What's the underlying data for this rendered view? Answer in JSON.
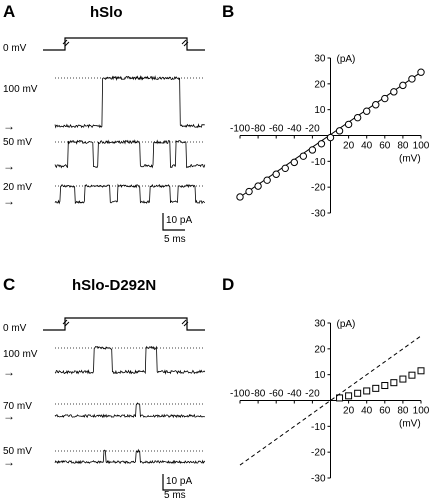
{
  "panels": {
    "A": {
      "letter": "A",
      "title": "hSlo",
      "voltage_step": "0 mV",
      "traces": [
        "100 mV",
        "50 mV",
        "20 mV"
      ],
      "scale_current": "10 pA",
      "scale_time": "5 ms"
    },
    "B": {
      "letter": "B"
    },
    "C": {
      "letter": "C",
      "title": "hSlo-D292N",
      "voltage_step": "0 mV",
      "traces": [
        "100 mV",
        "70 mV",
        "50 mV"
      ],
      "scale_current": "10 pA",
      "scale_time": "5 ms"
    },
    "D": {
      "letter": "D"
    }
  },
  "chart_data": [
    {
      "panel": "B",
      "type": "scatter",
      "x_unit": "(mV)",
      "y_unit": "(pA)",
      "xlim": [
        -100,
        100
      ],
      "ylim": [
        -30,
        30
      ],
      "x_ticks": [
        -100,
        -80,
        -60,
        -40,
        -20,
        20,
        40,
        60,
        80,
        100
      ],
      "y_ticks": [
        -30,
        -20,
        -10,
        10,
        20,
        30
      ],
      "grid": false,
      "series": [
        {
          "marker": "circle",
          "fit_line": true,
          "x": [
            -100,
            -90,
            -80,
            -70,
            -60,
            -50,
            -40,
            -30,
            -20,
            -10,
            0,
            10,
            20,
            30,
            40,
            50,
            60,
            70,
            80,
            90,
            100
          ],
          "y": [
            -23.8,
            -21.7,
            -19.6,
            -17.3,
            -15,
            -12.7,
            -10.4,
            -8,
            -5.6,
            -3.2,
            -0.8,
            1.8,
            4.3,
            6.9,
            9.4,
            11.9,
            14.3,
            16.9,
            19.4,
            21.9,
            24.5
          ]
        }
      ]
    },
    {
      "panel": "D",
      "type": "scatter",
      "x_unit": "(mV)",
      "y_unit": "(pA)",
      "xlim": [
        -100,
        100
      ],
      "ylim": [
        -30,
        30
      ],
      "x_ticks": [
        -100,
        -80,
        -60,
        -40,
        -20,
        20,
        40,
        60,
        80,
        100
      ],
      "y_ticks": [
        -30,
        -20,
        -10,
        10,
        20,
        30
      ],
      "grid": false,
      "series": [
        {
          "marker": "square",
          "fit_line": false,
          "x": [
            10,
            20,
            30,
            40,
            50,
            60,
            70,
            80,
            90,
            100
          ],
          "y": [
            1,
            1.8,
            2.8,
            3.7,
            4.7,
            5.8,
            6.9,
            8.3,
            9.8,
            11.5
          ]
        },
        {
          "marker": "none",
          "line": "dashed",
          "x": [
            -100,
            100
          ],
          "y": [
            -25,
            25
          ]
        }
      ]
    }
  ]
}
